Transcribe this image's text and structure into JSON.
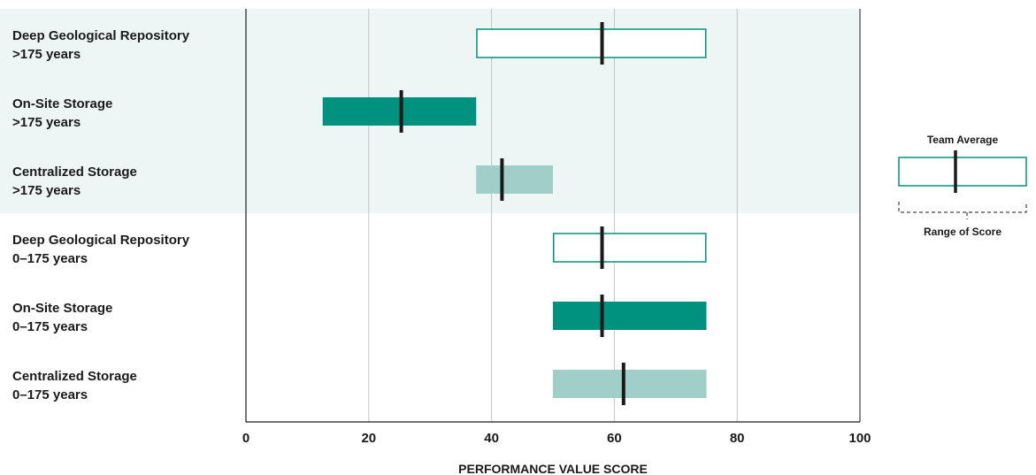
{
  "chart_data": {
    "type": "range-bar",
    "xlabel": "PERFORMANCE VALUE SCORE",
    "xlim": [
      0,
      100
    ],
    "x_ticks": [
      "0",
      "20",
      "40",
      "60",
      "80",
      "100"
    ],
    "grid": true,
    "rows": [
      {
        "label_line1": "Deep Geological Repository",
        "label_line2": ">175 years",
        "min": 37.5,
        "max": 75,
        "average": 58,
        "style": "outline",
        "band": "shaded"
      },
      {
        "label_line1": "On-Site Storage",
        "label_line2": ">175 years",
        "min": 12.5,
        "max": 37.5,
        "average": 25.3,
        "style": "dark",
        "band": "shaded"
      },
      {
        "label_line1": "Centralized Storage",
        "label_line2": ">175 years",
        "min": 37.5,
        "max": 50,
        "average": 41.7,
        "style": "light",
        "band": "shaded"
      },
      {
        "label_line1": "Deep Geological Repository",
        "label_line2": "0–175 years",
        "min": 50,
        "max": 75,
        "average": 58,
        "style": "outline",
        "band": "plain"
      },
      {
        "label_line1": "On-Site Storage",
        "label_line2": "0–175 years",
        "min": 50,
        "max": 75,
        "average": 58,
        "style": "dark",
        "band": "plain"
      },
      {
        "label_line1": "Centralized Storage",
        "label_line2": "0–175 years",
        "min": 50,
        "max": 75,
        "average": 61.5,
        "style": "light",
        "band": "plain"
      }
    ],
    "legend": {
      "average_label": "Team Average",
      "range_label": "Range of Score",
      "placement": "right"
    }
  },
  "colors": {
    "dark": "#00927f",
    "light": "#9fcfc8",
    "outline": "#00927f",
    "band": "#edf6f5",
    "grid": "#c4c4c4",
    "axis": "#1a1a1a",
    "marker": "#1a1a1a"
  }
}
